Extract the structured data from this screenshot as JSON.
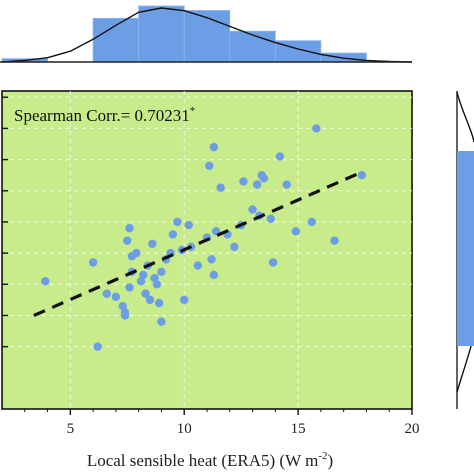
{
  "chart_data": {
    "type": "scatter",
    "xlabel_main": "Local sensible heat (ERA5) (W m",
    "xlabel_exp": "-2",
    "xlabel_close": ")",
    "xlim": [
      2,
      20
    ],
    "ylim": [
      -2,
      8.2
    ],
    "xticks": [
      "5",
      "10",
      "15",
      "20"
    ],
    "annotation_main": "Spearman Corr.= 0.70231",
    "annotation_sup": "*",
    "background_color": "#c8eb8c",
    "point_color": "#6c9ee6",
    "histogram_color": "#6c9ee6",
    "trendline": {
      "style": "dashed",
      "color": "#111111",
      "x": [
        3.4,
        17.8
      ],
      "y": [
        1.0,
        5.6
      ]
    },
    "points": [
      [
        3.9,
        2.1
      ],
      [
        6.0,
        2.7
      ],
      [
        6.6,
        1.7
      ],
      [
        6.2,
        0.0
      ],
      [
        7.0,
        1.6
      ],
      [
        7.3,
        1.3
      ],
      [
        7.4,
        1.1
      ],
      [
        7.6,
        1.9
      ],
      [
        7.4,
        1.0
      ],
      [
        7.7,
        2.4
      ],
      [
        7.5,
        3.4
      ],
      [
        7.6,
        3.8
      ],
      [
        7.9,
        3.0
      ],
      [
        7.7,
        2.9
      ],
      [
        8.1,
        2.1
      ],
      [
        8.2,
        2.3
      ],
      [
        8.3,
        1.7
      ],
      [
        8.4,
        2.6
      ],
      [
        8.5,
        1.5
      ],
      [
        8.6,
        3.3
      ],
      [
        8.9,
        1.4
      ],
      [
        8.8,
        2.0
      ],
      [
        8.7,
        2.2
      ],
      [
        9.0,
        0.8
      ],
      [
        9.0,
        2.4
      ],
      [
        9.2,
        2.8
      ],
      [
        9.4,
        3.0
      ],
      [
        9.5,
        3.6
      ],
      [
        9.7,
        4.0
      ],
      [
        9.9,
        3.1
      ],
      [
        10.2,
        3.9
      ],
      [
        10.3,
        3.2
      ],
      [
        10.0,
        1.5
      ],
      [
        10.6,
        2.6
      ],
      [
        11.0,
        3.5
      ],
      [
        11.2,
        2.8
      ],
      [
        11.3,
        2.3
      ],
      [
        11.4,
        3.7
      ],
      [
        11.1,
        5.8
      ],
      [
        11.3,
        6.4
      ],
      [
        11.6,
        5.1
      ],
      [
        11.9,
        3.6
      ],
      [
        12.2,
        3.2
      ],
      [
        12.5,
        3.9
      ],
      [
        12.6,
        5.3
      ],
      [
        13.0,
        4.4
      ],
      [
        13.3,
        4.2
      ],
      [
        13.2,
        5.2
      ],
      [
        13.4,
        5.5
      ],
      [
        13.5,
        5.4
      ],
      [
        13.8,
        4.1
      ],
      [
        13.9,
        2.7
      ],
      [
        14.2,
        6.1
      ],
      [
        14.5,
        5.2
      ],
      [
        14.9,
        3.7
      ],
      [
        15.6,
        4.0
      ],
      [
        15.8,
        7.0
      ],
      [
        16.6,
        3.4
      ],
      [
        17.8,
        5.5
      ]
    ],
    "top_histogram": {
      "bin_edges": [
        2,
        4,
        6,
        8,
        10,
        12,
        14,
        16,
        18
      ],
      "heights": [
        0.06,
        0.0,
        0.78,
        1.0,
        0.92,
        0.55,
        0.38,
        0.16
      ]
    },
    "top_density": {
      "x": [
        2,
        3,
        4,
        5,
        6,
        7,
        8,
        9,
        10,
        11,
        12,
        13,
        14,
        15,
        16,
        17,
        18,
        19,
        20
      ],
      "y": [
        0.0,
        0.03,
        0.08,
        0.2,
        0.42,
        0.68,
        0.92,
        1.0,
        0.95,
        0.82,
        0.66,
        0.5,
        0.36,
        0.24,
        0.14,
        0.07,
        0.03,
        0.01,
        0.0
      ]
    }
  }
}
